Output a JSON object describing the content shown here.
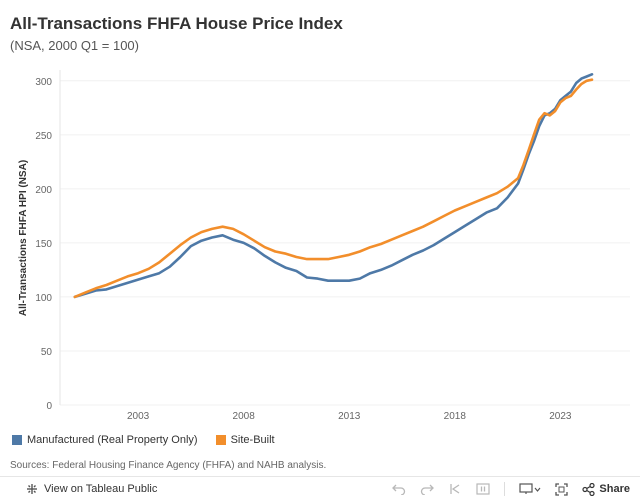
{
  "header": {
    "title": "All-Transactions FHFA House Price Index",
    "subtitle": "(NSA, 2000 Q1 = 100)"
  },
  "colors": {
    "manufactured": "#4e79a7",
    "site_built": "#f28e2b",
    "grid": "#f0f0f0",
    "axis_text": "#666666"
  },
  "chart_data": {
    "type": "line",
    "title": "All-Transactions FHFA House Price Index",
    "subtitle": "(NSA, 2000 Q1 = 100)",
    "xlabel": "",
    "ylabel": "All-Transactions FHFA HPI (NSA)",
    "xlim": [
      1999.3,
      2026.3
    ],
    "ylim": [
      0,
      310
    ],
    "x_ticks": [
      2003,
      2008,
      2013,
      2018,
      2023
    ],
    "x_tick_labels": [
      "2003",
      "2008",
      "2013",
      "2018",
      "2023"
    ],
    "y_ticks": [
      0,
      50,
      100,
      150,
      200,
      250,
      300
    ],
    "y_tick_labels": [
      "0",
      "50",
      "100",
      "150",
      "200",
      "250",
      "300"
    ],
    "grid": true,
    "legend_position": "bottom-left",
    "x": [
      2000,
      2000.5,
      2001,
      2001.5,
      2002,
      2002.5,
      2003,
      2003.5,
      2004,
      2004.5,
      2005,
      2005.5,
      2006,
      2006.5,
      2007,
      2007.5,
      2008,
      2008.5,
      2009,
      2009.5,
      2010,
      2010.5,
      2011,
      2011.5,
      2012,
      2012.5,
      2013,
      2013.5,
      2014,
      2014.5,
      2015,
      2015.5,
      2016,
      2016.5,
      2017,
      2017.5,
      2018,
      2018.5,
      2019,
      2019.5,
      2020,
      2020.5,
      2021,
      2021.25,
      2021.5,
      2021.75,
      2022,
      2022.25,
      2022.5,
      2022.75,
      2023,
      2023.25,
      2023.5,
      2023.75,
      2024,
      2024.25,
      2024.5
    ],
    "series": [
      {
        "name": "Manufactured (Real Property Only)",
        "values": [
          100,
          103,
          106,
          107,
          110,
          113,
          116,
          119,
          122,
          128,
          137,
          147,
          152,
          155,
          157,
          153,
          150,
          145,
          138,
          132,
          127,
          124,
          118,
          117,
          115,
          115,
          115,
          117,
          122,
          125,
          129,
          134,
          139,
          143,
          148,
          154,
          160,
          166,
          172,
          178,
          182,
          192,
          205,
          218,
          232,
          244,
          258,
          268,
          270,
          274,
          282,
          286,
          290,
          298,
          302,
          304,
          306
        ]
      },
      {
        "name": "Site-Built",
        "values": [
          100,
          104,
          108,
          111,
          115,
          119,
          122,
          126,
          132,
          140,
          148,
          155,
          160,
          163,
          165,
          163,
          158,
          152,
          146,
          142,
          140,
          137,
          135,
          135,
          135,
          137,
          139,
          142,
          146,
          149,
          153,
          157,
          161,
          165,
          170,
          175,
          180,
          184,
          188,
          192,
          196,
          202,
          210,
          222,
          236,
          250,
          264,
          270,
          268,
          272,
          280,
          284,
          286,
          292,
          297,
          300,
          301
        ]
      }
    ]
  },
  "legend": [
    {
      "label": "Manufactured (Real Property Only)",
      "color": "#4e79a7"
    },
    {
      "label": "Site-Built",
      "color": "#f28e2b"
    }
  ],
  "source": "Sources: Federal Housing Finance Agency (FHFA) and NAHB analysis.",
  "toolbar": {
    "view_label": "View on Tableau Public",
    "share_label": "Share"
  }
}
